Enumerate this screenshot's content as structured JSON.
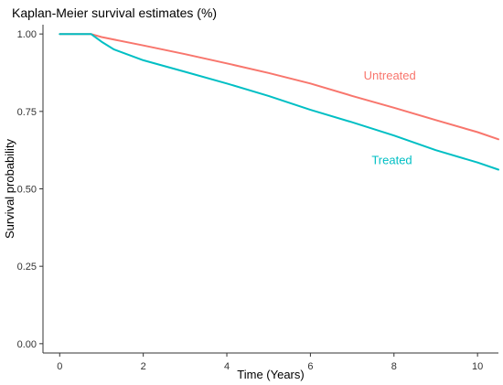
{
  "chart_data": {
    "type": "line",
    "title": "Kaplan-Meier survival estimates (%)",
    "xlabel": "Time (Years)",
    "ylabel": "Survival probability",
    "xlim": [
      -0.4,
      10.5
    ],
    "ylim": [
      -0.03,
      1.03
    ],
    "x_ticks": [
      0,
      2,
      4,
      6,
      8,
      10
    ],
    "x_tick_labels": [
      "0",
      "2",
      "4",
      "6",
      "8",
      "10"
    ],
    "y_ticks": [
      0,
      0.25,
      0.5,
      0.75,
      1.0
    ],
    "y_tick_labels": [
      "0.00",
      "0.25",
      "0.50",
      "0.75",
      "1.00"
    ],
    "grid": false,
    "legend": "inline labels",
    "series": [
      {
        "name": "Untreated",
        "color": "#F8766D",
        "label_at": [
          7.9,
          0.865
        ],
        "x": [
          0,
          0.75,
          1,
          2,
          3,
          4,
          5,
          6,
          7,
          8,
          9,
          10,
          10.5
        ],
        "values": [
          1.0,
          1.0,
          0.99,
          0.963,
          0.935,
          0.905,
          0.874,
          0.84,
          0.8,
          0.762,
          0.722,
          0.683,
          0.66
        ]
      },
      {
        "name": "Treated",
        "color": "#00BFC4",
        "label_at": [
          7.95,
          0.592
        ],
        "x": [
          0,
          0.75,
          1,
          1.3,
          2,
          3,
          4,
          5,
          6,
          7,
          8,
          9,
          10,
          10.5
        ],
        "values": [
          1.0,
          1.0,
          0.975,
          0.95,
          0.915,
          0.878,
          0.84,
          0.8,
          0.755,
          0.715,
          0.672,
          0.625,
          0.585,
          0.562
        ]
      }
    ]
  }
}
